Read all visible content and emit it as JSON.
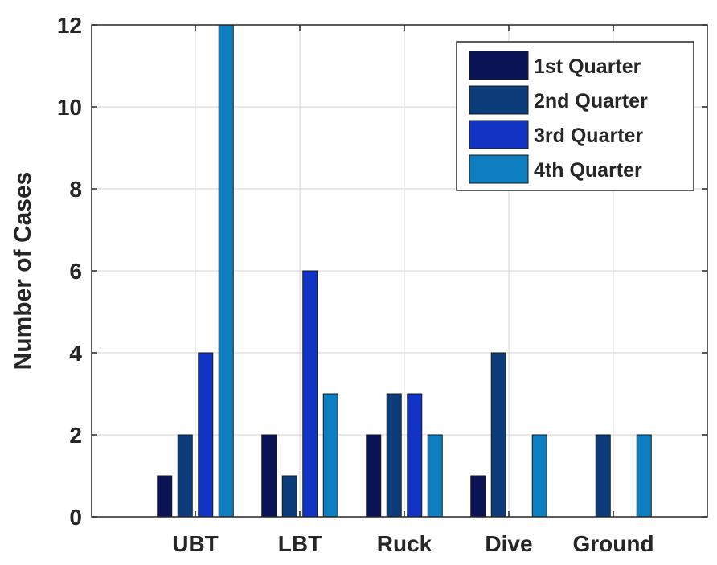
{
  "chart_data": {
    "type": "bar",
    "title": "",
    "xlabel": "",
    "ylabel": "Number of Cases",
    "categories": [
      "UBT",
      "LBT",
      "Ruck",
      "Dive",
      "Ground"
    ],
    "series": [
      {
        "name": "1st Quarter",
        "values": [
          1,
          2,
          2,
          1,
          0
        ],
        "color": "#0b1357"
      },
      {
        "name": "2nd Quarter",
        "values": [
          2,
          1,
          3,
          4,
          2
        ],
        "color": "#0c3d7a"
      },
      {
        "name": "3rd Quarter",
        "values": [
          4,
          6,
          3,
          0,
          0
        ],
        "color": "#1234c4"
      },
      {
        "name": "4th Quarter",
        "values": [
          12,
          3,
          2,
          2,
          2
        ],
        "color": "#0d7fc0"
      }
    ],
    "ylim": [
      0,
      12
    ],
    "yticks": [
      "0",
      "2",
      "4",
      "6",
      "8",
      "10",
      "12"
    ],
    "grid": true,
    "legend_position": "top-right"
  }
}
